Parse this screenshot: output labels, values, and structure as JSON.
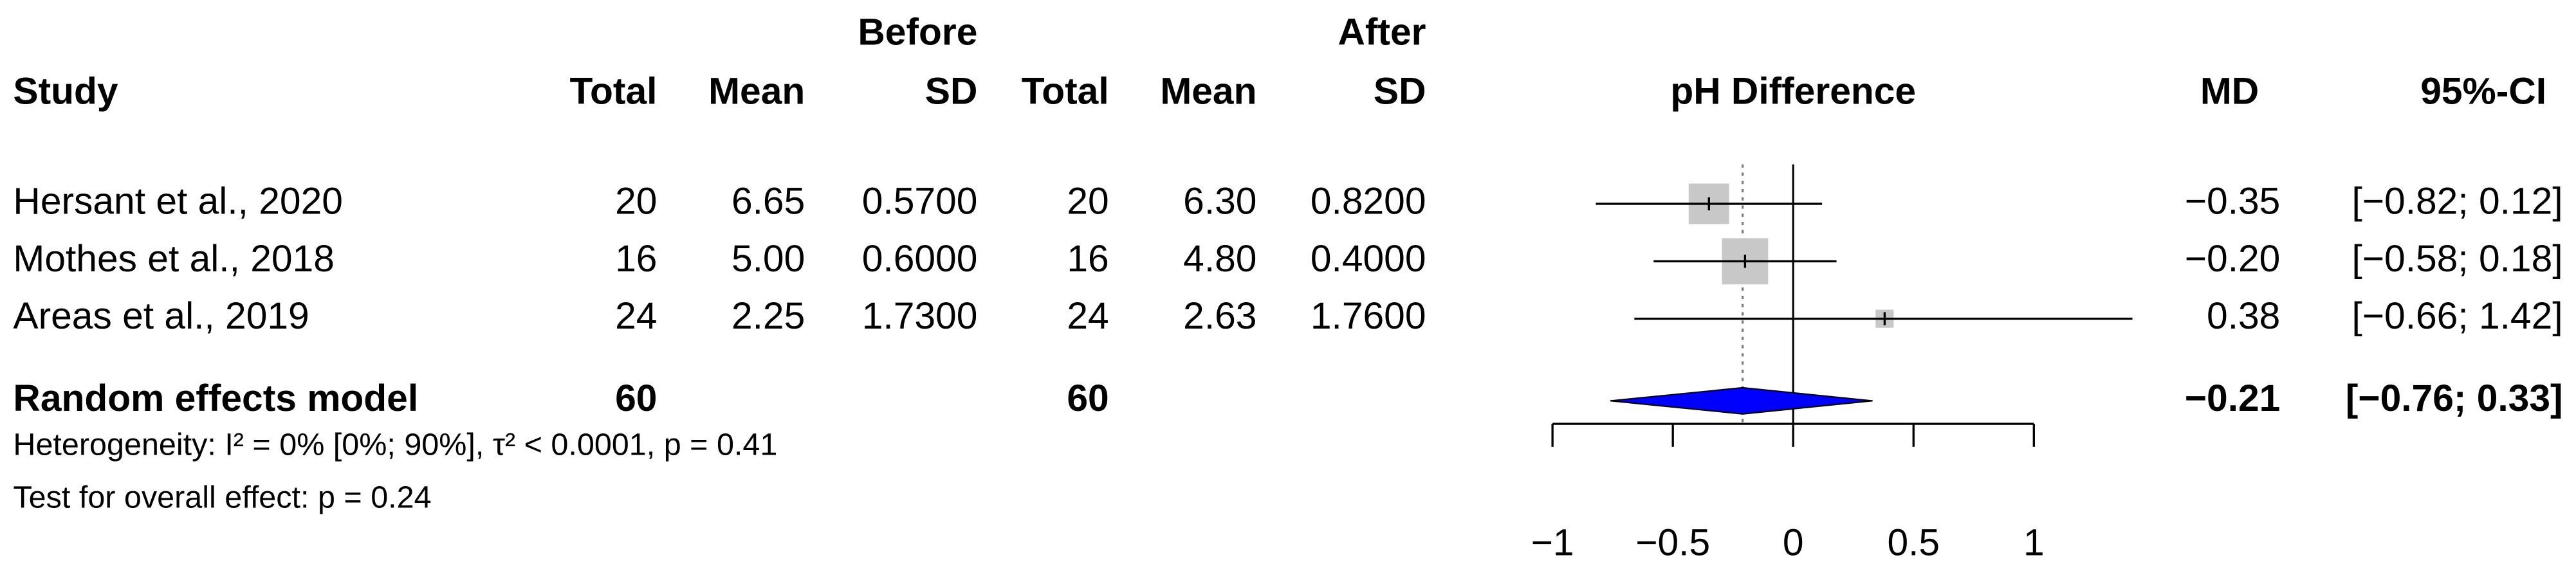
{
  "chart_data": {
    "type": "forest",
    "group_headers": [
      "Before",
      "After"
    ],
    "columns": [
      "Study",
      "Total",
      "Mean",
      "SD",
      "Total",
      "Mean",
      "SD",
      "pH Difference",
      "MD",
      "95%-CI"
    ],
    "studies": [
      {
        "name": "Hersant et al., 2020",
        "cells": [
          "20",
          "6.65",
          "0.5700",
          "20",
          "6.30",
          "0.8200"
        ],
        "md": -0.35,
        "md_label": "−0.35",
        "ci": [
          -0.82,
          0.12
        ],
        "ci_label": "[−0.82; 0.12]",
        "weight": 40
      },
      {
        "name": "Mothes et al., 2018",
        "cells": [
          "16",
          "5.00",
          "0.6000",
          "16",
          "4.80",
          "0.4000"
        ],
        "md": -0.2,
        "md_label": "−0.20",
        "ci": [
          -0.58,
          0.18
        ],
        "ci_label": "[−0.58; 0.18]",
        "weight": 52
      },
      {
        "name": "Areas et al., 2019",
        "cells": [
          "24",
          "2.25",
          "1.7300",
          "24",
          "2.63",
          "1.7600"
        ],
        "md": 0.38,
        "md_label": "0.38",
        "ci": [
          -0.66,
          1.42
        ],
        "ci_label": "[−0.66; 1.42]",
        "weight": 8
      }
    ],
    "summary": {
      "name": "Random effects model",
      "totals": [
        "60",
        "60"
      ],
      "md": -0.21,
      "md_label": "−0.21",
      "ci": [
        -0.76,
        0.33
      ],
      "ci_label": "[−0.76; 0.33]",
      "color": "#0000ff"
    },
    "heterogeneity": "Heterogeneity: I² = 0% [0%; 90%], τ² < 0.0001, p = 0.41",
    "overall_test": "Test for overall effect:  p = 0.24",
    "xlim": [
      -1,
      1
    ],
    "xticks": [
      {
        "value": -1,
        "label": "−1"
      },
      {
        "value": -0.5,
        "label": "−0.5"
      },
      0,
      0.5,
      1
    ],
    "box_color": "#c8c8c8"
  }
}
